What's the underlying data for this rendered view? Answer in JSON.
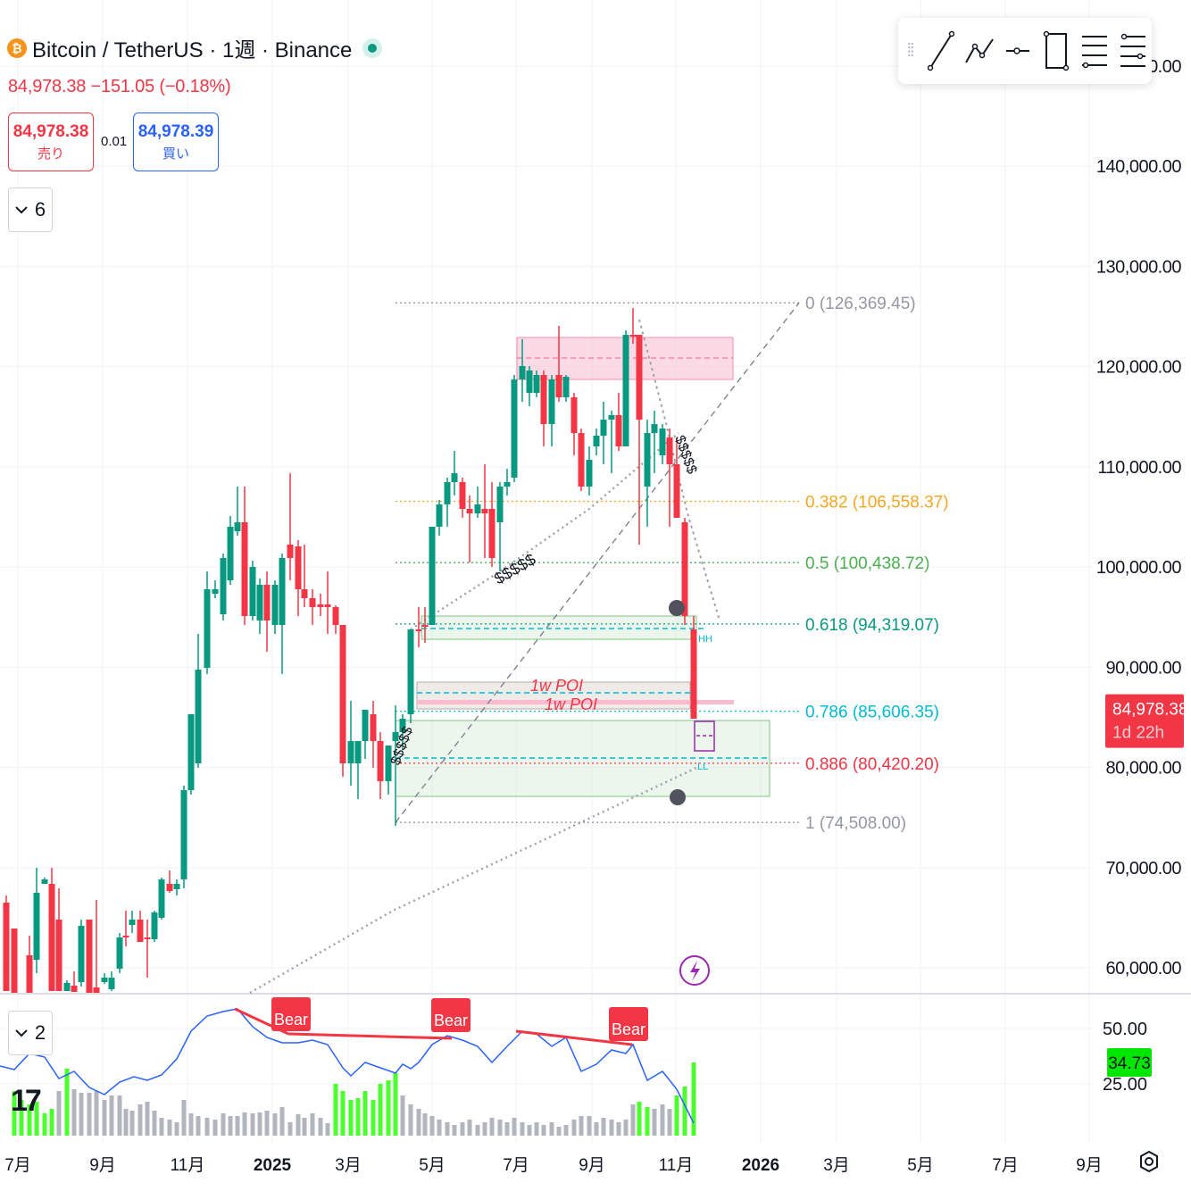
{
  "symbol": {
    "title": "Bitcoin / TetherUS · 1週 · Binance",
    "logo_glyph": "₿",
    "last": "84,978.38",
    "change": "−151.05 (−0.18%)"
  },
  "trade": {
    "sell_price": "84,978.38",
    "sell_label": "売り",
    "spread": "0.01",
    "buy_price": "84,978.39",
    "buy_label": "買い"
  },
  "indicators_toggle": {
    "count": "6"
  },
  "sub_toggle": {
    "count": "2"
  },
  "drawing_toolbar": {
    "icons": [
      "drag-handle-icon",
      "trend-line-icon",
      "path-icon",
      "horizontal-ray-icon",
      "rectangle-icon",
      "fib-retracement-icon",
      "fib-extension-icon"
    ]
  },
  "price_axis": {
    "labels": [
      "150,000.00",
      "140,000.00",
      "130,000.00",
      "120,000.00",
      "110,000.00",
      "100,000.00",
      "90,000.00",
      "80,000.00",
      "70,000.00",
      "60,000.00"
    ],
    "current_price": "84,978.38",
    "countdown": "1d 22h"
  },
  "rsi_axis": {
    "labels": [
      "50.00",
      "25.00"
    ],
    "current": "34.73"
  },
  "time_axis": {
    "labels": [
      "7月",
      "9月",
      "11月",
      "2025",
      "3月",
      "5月",
      "7月",
      "9月",
      "11月",
      "2026",
      "3月",
      "5月",
      "7月",
      "9月"
    ]
  },
  "fib_levels": [
    {
      "ratio": "0",
      "price": 126369.45,
      "label": "0 (126,369.45)",
      "color": "#9598a1"
    },
    {
      "ratio": "0.382",
      "price": 106558.37,
      "label": "0.382 (106,558.37)",
      "color": "#f5a623"
    },
    {
      "ratio": "0.5",
      "price": 100438.72,
      "label": "0.5 (100,438.72)",
      "color": "#4caf50"
    },
    {
      "ratio": "0.618",
      "price": 94319.07,
      "label": "0.618 (94,319.07)",
      "color": "#089981"
    },
    {
      "ratio": "0.786",
      "price": 85606.35,
      "label": "0.786 (85,606.35)",
      "color": "#00bcd4"
    },
    {
      "ratio": "0.886",
      "price": 80420.2,
      "label": "0.886 (80,420.20)",
      "color": "#f23645"
    },
    {
      "ratio": "1",
      "price": 74508.0,
      "label": "1 (74,508.00)",
      "color": "#9598a1"
    }
  ],
  "annotations": {
    "poi_1": "1w POI",
    "poi_2": "1w POI",
    "liquidity_marks": [
      "$$$$$",
      "$$$$$",
      "$$$$$"
    ],
    "hh": "HH",
    "ll": "LL",
    "divergence_label": "Bear"
  },
  "colors": {
    "up": "#089981",
    "down": "#f23645",
    "rsi_line": "#2962ff",
    "volume_high": "#4cff2e",
    "volume_normal": "#b2b5be",
    "supply_zone": "#f8bbd0",
    "demand_zone": "#c8e6c9"
  }
}
